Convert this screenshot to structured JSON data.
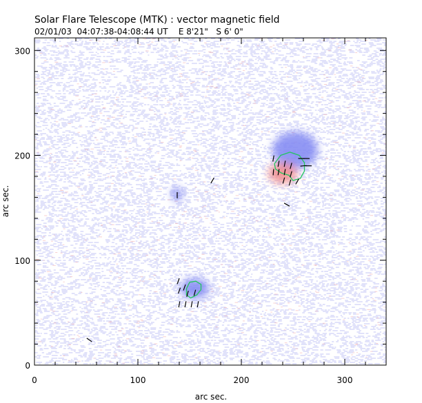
{
  "chart_data": {
    "type": "heatmap",
    "title": "Solar Flare Telescope (MTK) : vector magnetic field",
    "subtitle": "02/01/03  04:07:38-04:08:44 UT    E 8'21\"   S 6' 0\"",
    "xlabel": "arc sec.",
    "ylabel": "arc sec.",
    "xlim": [
      0,
      340
    ],
    "ylim": [
      0,
      312
    ],
    "xticks": [
      0,
      100,
      200,
      300
    ],
    "yticks": [
      0,
      100,
      200,
      300
    ],
    "x_minor_step": 20,
    "y_minor_step": 20,
    "colors": {
      "negative_polarity": "#7f86f2",
      "positive_polarity": "#f08a8a",
      "contour": "#22c55e",
      "vector": "#000000",
      "noise": "#b8bcf5"
    },
    "regions": [
      {
        "name": "main-negative",
        "polarity": "negative",
        "x": 252,
        "y": 205,
        "rx": 22,
        "ry": 18
      },
      {
        "name": "main-positive",
        "polarity": "positive",
        "x": 240,
        "y": 183,
        "rx": 14,
        "ry": 10
      },
      {
        "name": "lower-negative",
        "polarity": "negative",
        "x": 155,
        "y": 73,
        "rx": 14,
        "ry": 10
      },
      {
        "name": "small-negative",
        "polarity": "negative",
        "x": 138,
        "y": 163,
        "rx": 5,
        "ry": 7
      }
    ],
    "contours": [
      {
        "name": "main-contour",
        "points": [
          [
            232,
            192
          ],
          [
            238,
            200
          ],
          [
            247,
            203
          ],
          [
            256,
            200
          ],
          [
            261,
            193
          ],
          [
            261,
            185
          ],
          [
            257,
            178
          ],
          [
            250,
            176
          ],
          [
            246,
            181
          ],
          [
            239,
            183
          ],
          [
            233,
            187
          ]
        ]
      },
      {
        "name": "lower-contour",
        "points": [
          [
            147,
            73
          ],
          [
            150,
            79
          ],
          [
            156,
            80
          ],
          [
            161,
            77
          ],
          [
            161,
            72
          ],
          [
            157,
            67
          ],
          [
            151,
            64
          ],
          [
            147,
            67
          ]
        ]
      }
    ],
    "vectors": [
      {
        "x": 231,
        "y": 197,
        "angle": 80
      },
      {
        "x": 236,
        "y": 192,
        "angle": 80
      },
      {
        "x": 242,
        "y": 192,
        "angle": 80
      },
      {
        "x": 248,
        "y": 190,
        "angle": 75
      },
      {
        "x": 231,
        "y": 184,
        "angle": 85
      },
      {
        "x": 236,
        "y": 184,
        "angle": 80
      },
      {
        "x": 242,
        "y": 184,
        "angle": 80
      },
      {
        "x": 248,
        "y": 182,
        "angle": 75
      },
      {
        "x": 241,
        "y": 176,
        "angle": 75
      },
      {
        "x": 247,
        "y": 174,
        "angle": 75
      },
      {
        "x": 254,
        "y": 175,
        "angle": 60
      },
      {
        "x": 258,
        "y": 197,
        "angle": 0
      },
      {
        "x": 263,
        "y": 197,
        "angle": 0
      },
      {
        "x": 260,
        "y": 190,
        "angle": 5
      },
      {
        "x": 265,
        "y": 190,
        "angle": 0
      },
      {
        "x": 244,
        "y": 153,
        "angle": -30
      },
      {
        "x": 172,
        "y": 176,
        "angle": 60
      },
      {
        "x": 138,
        "y": 162,
        "angle": 90
      },
      {
        "x": 139,
        "y": 80,
        "angle": 70
      },
      {
        "x": 140,
        "y": 71,
        "angle": 70
      },
      {
        "x": 145,
        "y": 74,
        "angle": 70
      },
      {
        "x": 148,
        "y": 68,
        "angle": 75
      },
      {
        "x": 155,
        "y": 69,
        "angle": 75
      },
      {
        "x": 140,
        "y": 58,
        "angle": 80
      },
      {
        "x": 146,
        "y": 58,
        "angle": 80
      },
      {
        "x": 152,
        "y": 58,
        "angle": 80
      },
      {
        "x": 158,
        "y": 58,
        "angle": 80
      },
      {
        "x": 53,
        "y": 24,
        "angle": -35
      }
    ]
  }
}
